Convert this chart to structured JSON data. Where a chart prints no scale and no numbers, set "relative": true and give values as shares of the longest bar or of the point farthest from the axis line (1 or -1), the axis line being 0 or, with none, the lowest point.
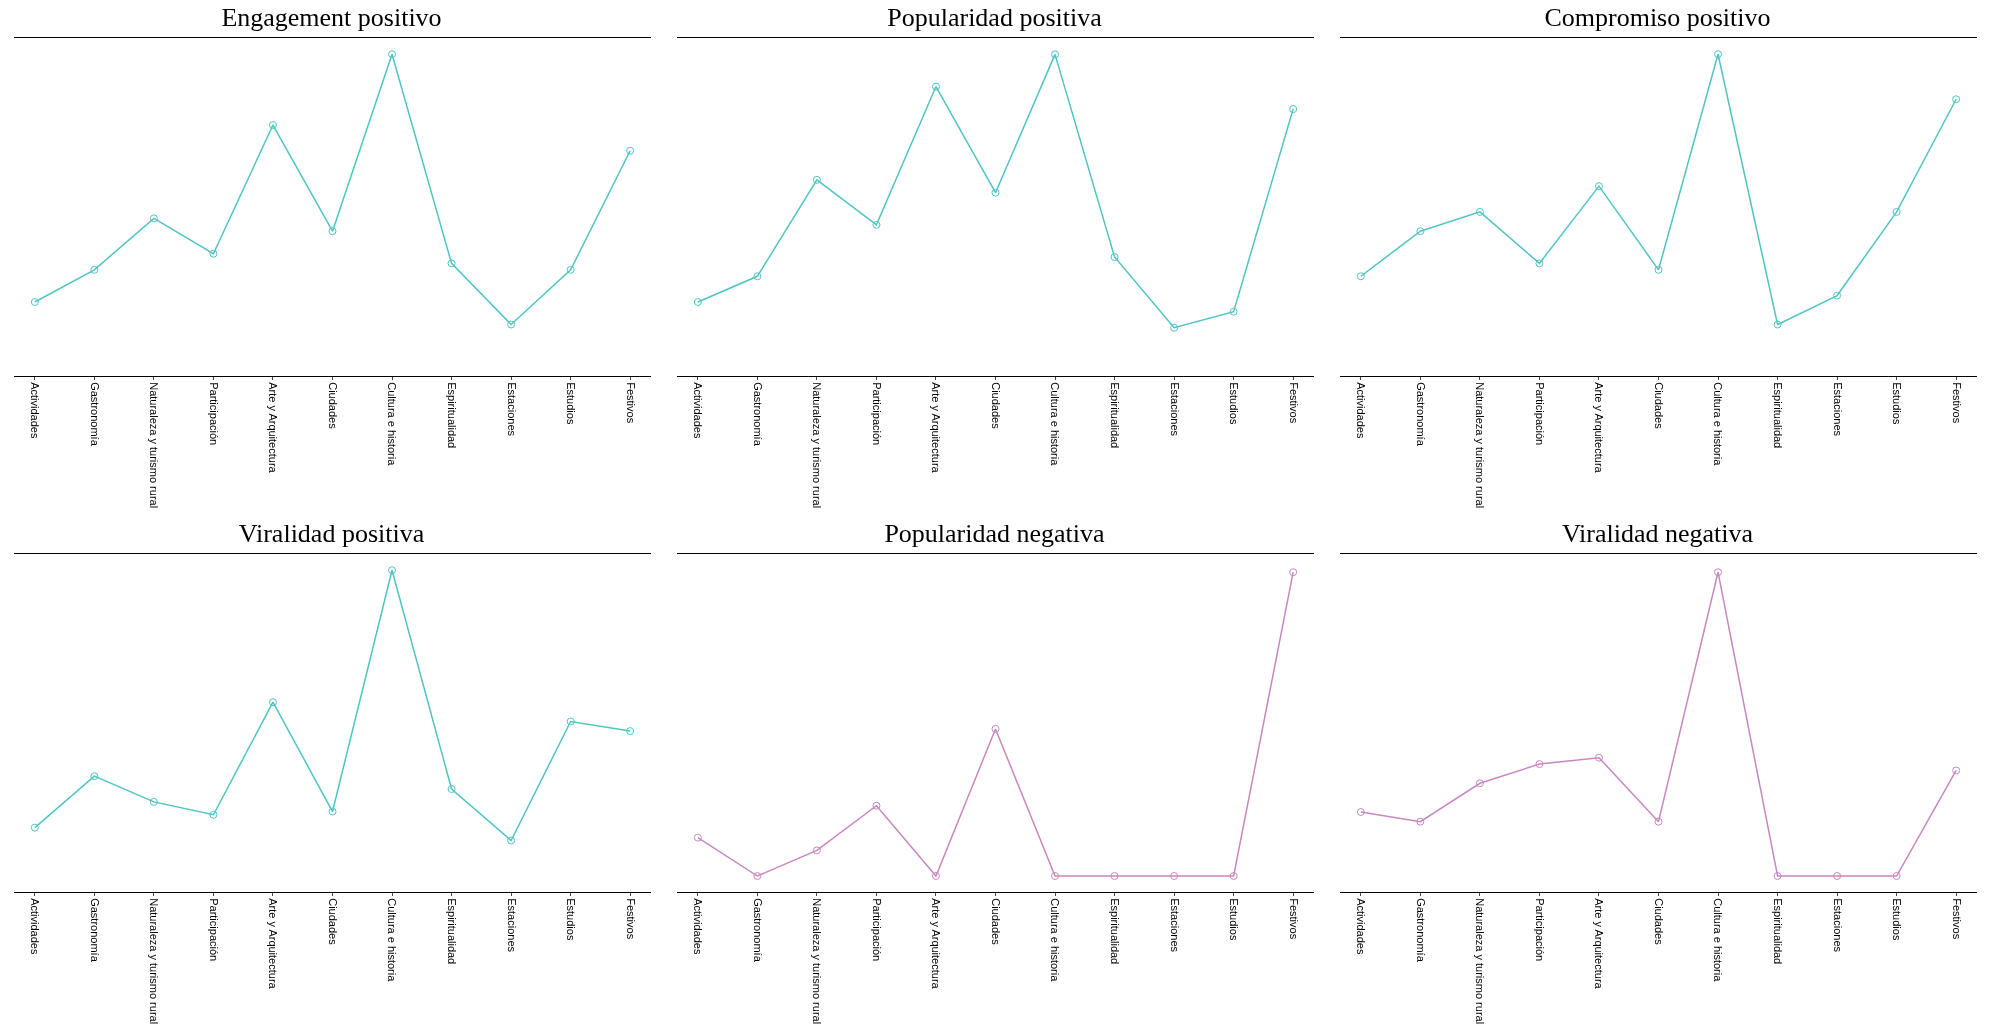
{
  "chart_data": [
    {
      "type": "line",
      "title": "Engagement positivo",
      "relative": true,
      "marker": "circle",
      "categories": [
        "Actividades",
        "Gastronomía",
        "Naturaleza y turismo rural",
        "Participación",
        "Arte y Arquitectura",
        "Ciudades",
        "Cultura e historia",
        "Espiritualidad",
        "Estaciones",
        "Estudios",
        "Festivos"
      ],
      "series": [
        {
          "color": "#4fc4c4",
          "values": [
            0.23,
            0.33,
            0.49,
            0.38,
            0.78,
            0.45,
            1,
            0.35,
            0.16,
            0.33,
            0.7
          ]
        }
      ]
    },
    {
      "type": "line",
      "title": "Popularidad positiva",
      "relative": true,
      "marker": "circle",
      "categories": [
        "Actividades",
        "Gastronomía",
        "Naturaleza y turismo rural",
        "Participación",
        "Arte y Arquitectura",
        "Ciudades",
        "Cultura e historia",
        "Espiritualidad",
        "Estaciones",
        "Estudios",
        "Festivos"
      ],
      "series": [
        {
          "color": "#4fc4c4",
          "values": [
            0.23,
            0.31,
            0.61,
            0.47,
            0.9,
            0.57,
            1,
            0.37,
            0.15,
            0.2,
            0.83
          ]
        }
      ]
    },
    {
      "type": "line",
      "title": "Compromiso positivo",
      "relative": true,
      "marker": "circle",
      "categories": [
        "Actividades",
        "Gastronomía",
        "Naturaleza y turismo rural",
        "Participación",
        "Arte y Arquitectura",
        "Ciudades",
        "Cultura e historia",
        "Espiritualidad",
        "Estaciones",
        "Estudios",
        "Festivos"
      ],
      "series": [
        {
          "color": "#4fc4c4",
          "values": [
            0.31,
            0.45,
            0.51,
            0.35,
            0.59,
            0.33,
            1,
            0.16,
            0.25,
            0.51,
            0.86
          ]
        }
      ]
    },
    {
      "type": "line",
      "title": "Viralidad positiva",
      "relative": true,
      "marker": "circle",
      "categories": [
        "Actividades",
        "Gastronomía",
        "Naturaleza y turismo rural",
        "Participación",
        "Arte y Arquitectura",
        "Ciudades",
        "Cultura e historia",
        "Espiritualidad",
        "Estaciones",
        "Estudios",
        "Festivos"
      ],
      "series": [
        {
          "color": "#4fc4c4",
          "values": [
            0.2,
            0.36,
            0.28,
            0.24,
            0.59,
            0.25,
            1,
            0.32,
            0.16,
            0.53,
            0.5
          ]
        }
      ]
    },
    {
      "type": "line",
      "title": "Popularidad negativa",
      "relative": true,
      "marker": "circle",
      "categories": [
        "Actividades",
        "Gastronomía",
        "Naturaleza y turismo rural",
        "Participación",
        "Arte y Arquitectura",
        "Ciudades",
        "Cultura e historia",
        "Espiritualidad",
        "Estaciones",
        "Estudios",
        "Festivos"
      ],
      "series": [
        {
          "color": "#c987c0",
          "values": [
            0.17,
            0.05,
            0.13,
            0.27,
            0.05,
            0.51,
            0.05,
            0.05,
            0.05,
            0.05,
            1
          ]
        }
      ]
    },
    {
      "type": "line",
      "title": "Viralidad negativa",
      "relative": true,
      "marker": "circle",
      "categories": [
        "Actividades",
        "Gastronomía",
        "Naturaleza y turismo rural",
        "Participación",
        "Arte y Arquitectura",
        "Ciudades",
        "Cultura e historia",
        "Espiritualidad",
        "Estaciones",
        "Estudios",
        "Festivos"
      ],
      "series": [
        {
          "color": "#c987c0",
          "values": [
            0.25,
            0.22,
            0.34,
            0.4,
            0.42,
            0.22,
            1,
            0.05,
            0.05,
            0.05,
            0.38
          ]
        }
      ]
    }
  ]
}
